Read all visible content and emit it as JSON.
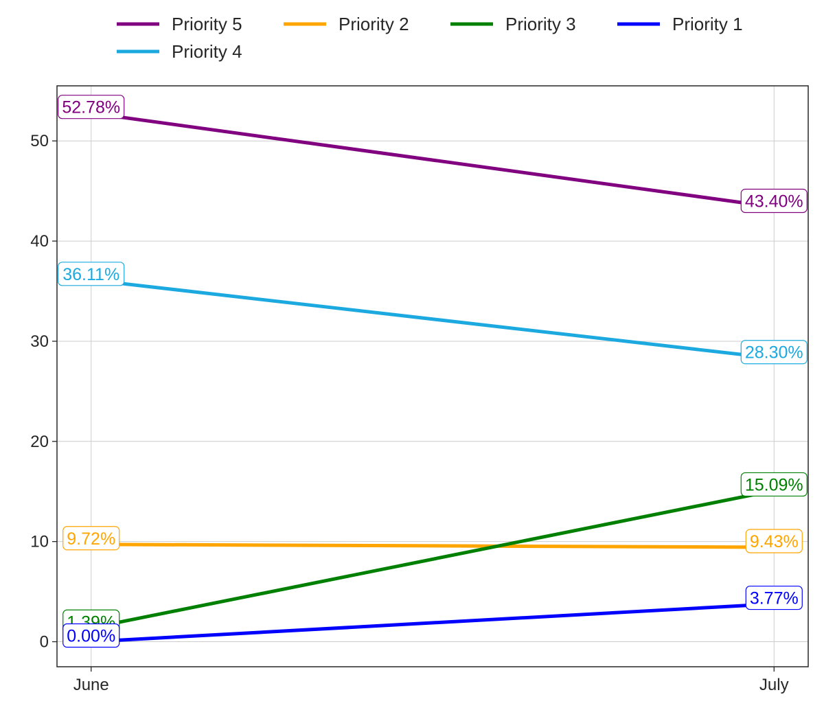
{
  "chart_data": {
    "type": "line",
    "categories": [
      "June",
      "July"
    ],
    "series": [
      {
        "name": "Priority 5",
        "color": "#800080",
        "values": [
          52.78,
          43.4
        ],
        "labels": [
          "52.78%",
          "43.40%"
        ]
      },
      {
        "name": "Priority 2",
        "color": "#FFA500",
        "values": [
          9.72,
          9.43
        ],
        "labels": [
          "9.72%",
          "9.43%"
        ]
      },
      {
        "name": "Priority 3",
        "color": "#008000",
        "values": [
          1.39,
          15.09
        ],
        "labels": [
          "1.39%",
          "15.09%"
        ]
      },
      {
        "name": "Priority 1",
        "color": "#0000FF",
        "values": [
          0.0,
          3.77
        ],
        "labels": [
          "0.00%",
          "3.77%"
        ]
      },
      {
        "name": "Priority 4",
        "color": "#1CA9E0",
        "values": [
          36.11,
          28.3
        ],
        "labels": [
          "36.11%",
          "28.30%"
        ]
      }
    ],
    "yticks": [
      0,
      10,
      20,
      30,
      40,
      50
    ],
    "ylim": [
      -2.5,
      55.5
    ],
    "xlim": [
      -0.05,
      1.05
    ],
    "grid": true,
    "legend": "top-center",
    "title": "",
    "xlabel": "",
    "ylabel": ""
  }
}
